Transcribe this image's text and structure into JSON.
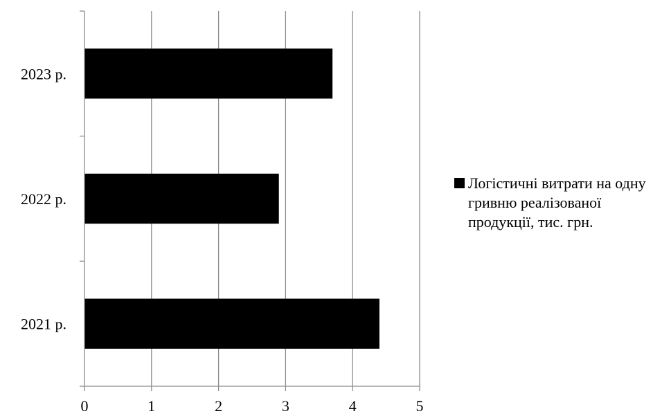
{
  "chart_data": {
    "type": "bar",
    "orientation": "horizontal",
    "categories": [
      "2021 р.",
      "2022 р.",
      "2023 р."
    ],
    "series": [
      {
        "name": "Логістичні витрати на одну гривню реалізованої продукції, тис. грн.",
        "values": [
          4.4,
          2.9,
          3.7
        ],
        "color": "#000000"
      }
    ],
    "xlim": [
      0,
      5
    ],
    "xticks": [
      "0",
      "1",
      "2",
      "3",
      "4",
      "5"
    ],
    "grid": "vertical",
    "legend_position": "right",
    "title": "",
    "xlabel": "",
    "ylabel": ""
  }
}
